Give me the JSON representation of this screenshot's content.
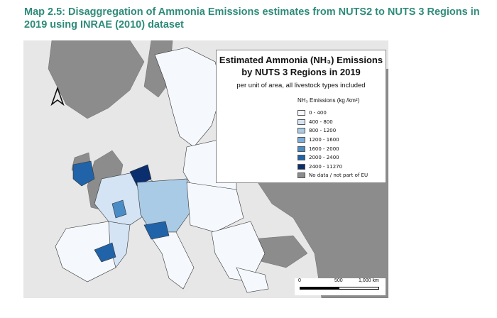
{
  "caption": "Map 2.5: Disaggregation of Ammonia Emissions estimates from NUTS2 to NUTS 3 Regions in 2019 using INRAE (2010) dataset",
  "map": {
    "title_line1": "Estimated Ammonia (NH₃) Emissions",
    "title_line2": "by NUTS 3 Regions in 2019",
    "subtitle": "per unit of area, all livestock types included",
    "legend_units": "NH₃ Emissions (kg /km²)",
    "legend": [
      {
        "label": "0 - 400",
        "color": "#f5f9fe"
      },
      {
        "label": "400 - 800",
        "color": "#d4e4f4"
      },
      {
        "label": "800 - 1200",
        "color": "#a9cbe6"
      },
      {
        "label": "1200 - 1600",
        "color": "#7aaedb"
      },
      {
        "label": "1600 - 2000",
        "color": "#4a8cc6"
      },
      {
        "label": "2000 - 2400",
        "color": "#2163a8"
      },
      {
        "label": "2400 - 11270",
        "color": "#0b2f6e"
      },
      {
        "label": "No data / not part of EU",
        "color": "#8c8c8c"
      }
    ],
    "scale": {
      "label_0": "0",
      "label_mid": "500",
      "label_max": "1,000 km"
    },
    "colors": {
      "sea": "#e7e7e7",
      "non_eu": "#8c8c8c",
      "border": "#000000"
    }
  }
}
